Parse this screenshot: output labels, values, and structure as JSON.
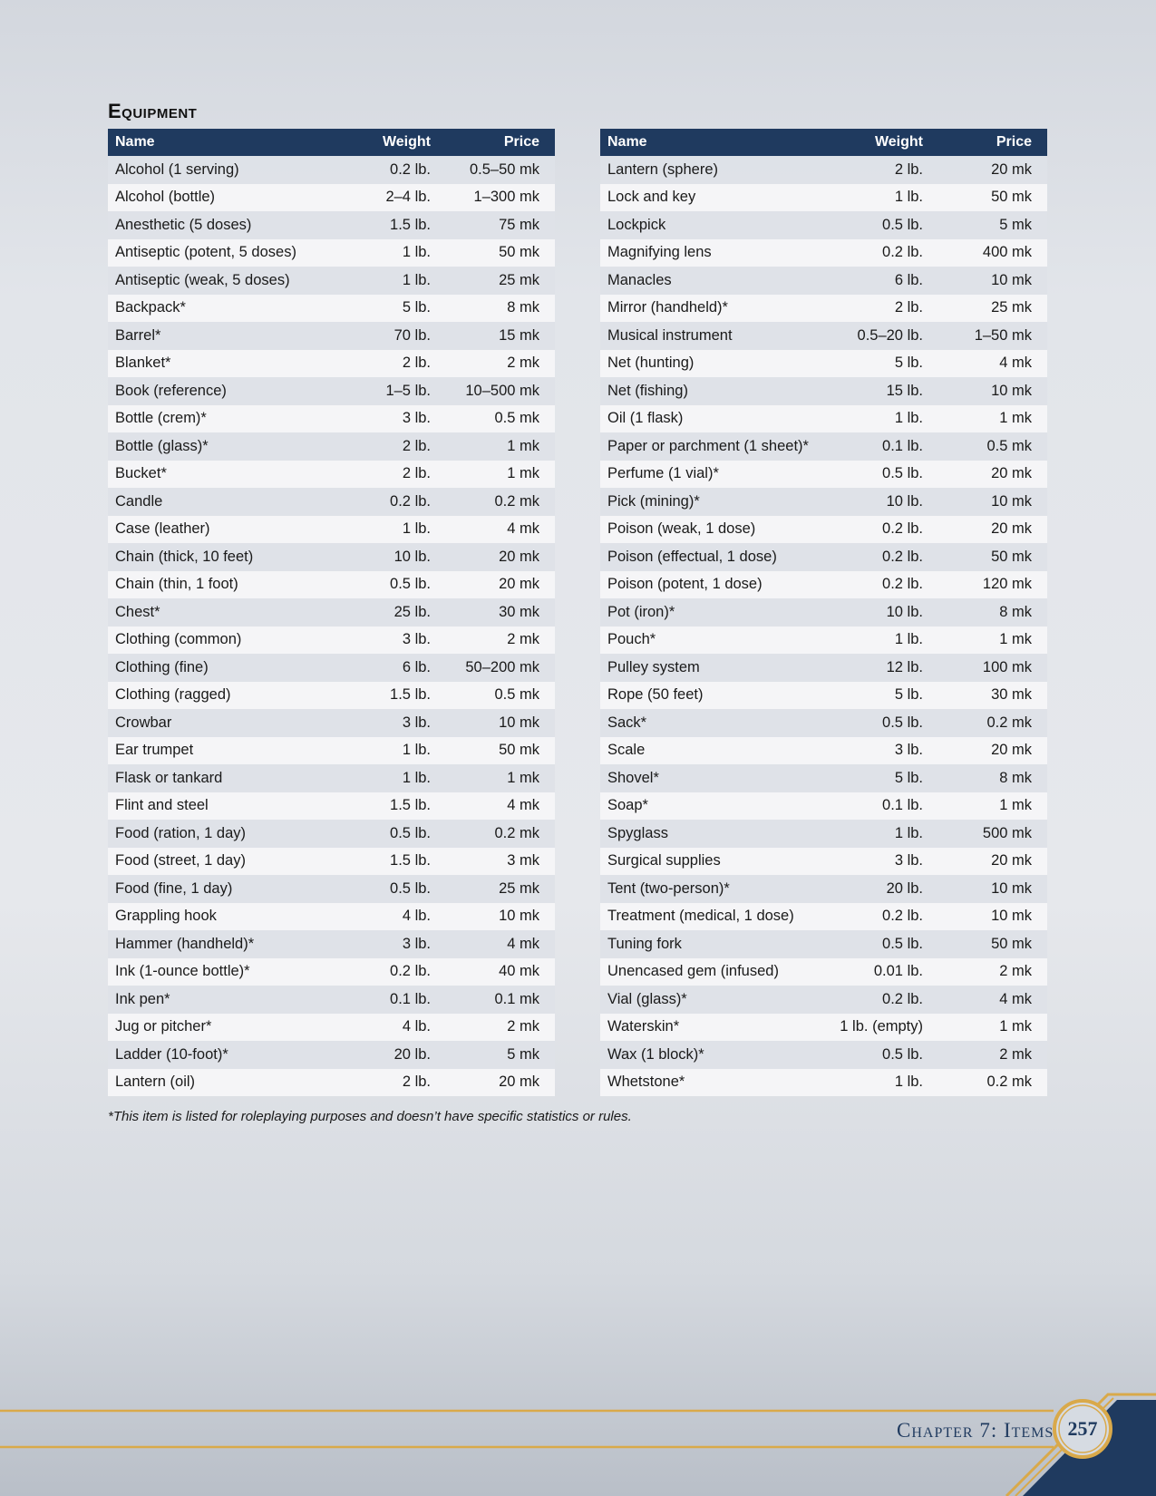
{
  "heading": "Equipment",
  "columns": {
    "name": "Name",
    "weight": "Weight",
    "price": "Price"
  },
  "left_rows": [
    [
      "Alcohol (1 serving)",
      "0.2 lb.",
      "0.5–50 mk"
    ],
    [
      "Alcohol (bottle)",
      "2–4 lb.",
      "1–300 mk"
    ],
    [
      "Anesthetic (5 doses)",
      "1.5 lb.",
      "75 mk"
    ],
    [
      "Antiseptic (potent, 5 doses)",
      "1 lb.",
      "50 mk"
    ],
    [
      "Antiseptic (weak, 5 doses)",
      "1 lb.",
      "25 mk"
    ],
    [
      "Backpack*",
      "5 lb.",
      "8 mk"
    ],
    [
      "Barrel*",
      "70 lb.",
      "15 mk"
    ],
    [
      "Blanket*",
      "2 lb.",
      "2 mk"
    ],
    [
      "Book (reference)",
      "1–5 lb.",
      "10–500 mk"
    ],
    [
      "Bottle (crem)*",
      "3 lb.",
      "0.5 mk"
    ],
    [
      "Bottle (glass)*",
      "2 lb.",
      "1 mk"
    ],
    [
      "Bucket*",
      "2 lb.",
      "1 mk"
    ],
    [
      "Candle",
      "0.2 lb.",
      "0.2 mk"
    ],
    [
      "Case (leather)",
      "1 lb.",
      "4 mk"
    ],
    [
      "Chain (thick, 10 feet)",
      "10 lb.",
      "20 mk"
    ],
    [
      "Chain (thin, 1 foot)",
      "0.5 lb.",
      "20 mk"
    ],
    [
      "Chest*",
      "25 lb.",
      "30 mk"
    ],
    [
      "Clothing (common)",
      "3 lb.",
      "2 mk"
    ],
    [
      "Clothing (fine)",
      "6 lb.",
      "50–200 mk"
    ],
    [
      "Clothing (ragged)",
      "1.5 lb.",
      "0.5 mk"
    ],
    [
      "Crowbar",
      "3 lb.",
      "10 mk"
    ],
    [
      "Ear trumpet",
      "1 lb.",
      "50 mk"
    ],
    [
      "Flask or tankard",
      "1 lb.",
      "1 mk"
    ],
    [
      "Flint and steel",
      "1.5 lb.",
      "4 mk"
    ],
    [
      "Food (ration, 1 day)",
      "0.5 lb.",
      "0.2 mk"
    ],
    [
      "Food (street, 1 day)",
      "1.5 lb.",
      "3 mk"
    ],
    [
      "Food (fine, 1 day)",
      "0.5 lb.",
      "25 mk"
    ],
    [
      "Grappling hook",
      "4 lb.",
      "10 mk"
    ],
    [
      "Hammer (handheld)*",
      "3 lb.",
      "4 mk"
    ],
    [
      "Ink (1-ounce bottle)*",
      "0.2 lb.",
      "40 mk"
    ],
    [
      "Ink pen*",
      "0.1 lb.",
      "0.1 mk"
    ],
    [
      "Jug or pitcher*",
      "4 lb.",
      "2 mk"
    ],
    [
      "Ladder (10-foot)*",
      "20 lb.",
      "5 mk"
    ],
    [
      "Lantern (oil)",
      "2 lb.",
      "20 mk"
    ]
  ],
  "right_rows": [
    [
      "Lantern (sphere)",
      "2 lb.",
      "20 mk"
    ],
    [
      "Lock and key",
      "1 lb.",
      "50 mk"
    ],
    [
      "Lockpick",
      "0.5 lb.",
      "5 mk"
    ],
    [
      "Magnifying lens",
      "0.2 lb.",
      "400 mk"
    ],
    [
      "Manacles",
      "6 lb.",
      "10 mk"
    ],
    [
      "Mirror (handheld)*",
      "2 lb.",
      "25 mk"
    ],
    [
      "Musical instrument",
      "0.5–20 lb.",
      "1–50 mk"
    ],
    [
      "Net (hunting)",
      "5 lb.",
      "4 mk"
    ],
    [
      "Net (fishing)",
      "15 lb.",
      "10 mk"
    ],
    [
      "Oil (1 flask)",
      "1 lb.",
      "1 mk"
    ],
    [
      "Paper or parchment (1 sheet)*",
      "0.1 lb.",
      "0.5 mk"
    ],
    [
      "Perfume (1 vial)*",
      "0.5 lb.",
      "20 mk"
    ],
    [
      "Pick (mining)*",
      "10 lb.",
      "10 mk"
    ],
    [
      "Poison (weak, 1 dose)",
      "0.2 lb.",
      "20 mk"
    ],
    [
      "Poison (effectual, 1 dose)",
      "0.2 lb.",
      "50 mk"
    ],
    [
      "Poison (potent, 1 dose)",
      "0.2 lb.",
      "120 mk"
    ],
    [
      "Pot (iron)*",
      "10 lb.",
      "8 mk"
    ],
    [
      "Pouch*",
      "1 lb.",
      "1 mk"
    ],
    [
      "Pulley system",
      "12 lb.",
      "100 mk"
    ],
    [
      "Rope (50 feet)",
      "5 lb.",
      "30 mk"
    ],
    [
      "Sack*",
      "0.5 lb.",
      "0.2 mk"
    ],
    [
      "Scale",
      "3 lb.",
      "20 mk"
    ],
    [
      "Shovel*",
      "5 lb.",
      "8 mk"
    ],
    [
      "Soap*",
      "0.1 lb.",
      "1 mk"
    ],
    [
      "Spyglass",
      "1 lb.",
      "500 mk"
    ],
    [
      "Surgical supplies",
      "3 lb.",
      "20 mk"
    ],
    [
      "Tent (two-person)*",
      "20 lb.",
      "10 mk"
    ],
    [
      "Treatment (medical, 1 dose)",
      "0.2 lb.",
      "10 mk"
    ],
    [
      "Tuning fork",
      "0.5 lb.",
      "50 mk"
    ],
    [
      "Unencased gem (infused)",
      "0.01 lb.",
      "2 mk"
    ],
    [
      "Vial (glass)*",
      "0.2 lb.",
      "4 mk"
    ],
    [
      "Waterskin*",
      "1 lb. (empty)",
      "1 mk"
    ],
    [
      "Wax (1 block)*",
      "0.5 lb.",
      "2 mk"
    ],
    [
      "Whetstone*",
      "1 lb.",
      "0.2 mk"
    ]
  ],
  "footnote": "*This item is listed for roleplaying purposes and doesn’t have specific statistics or rules.",
  "footer": {
    "chapter": "Chapter 7: Items",
    "page": "257"
  },
  "colors": {
    "header": "#1f3a5f",
    "gold": "#d9a94a"
  }
}
